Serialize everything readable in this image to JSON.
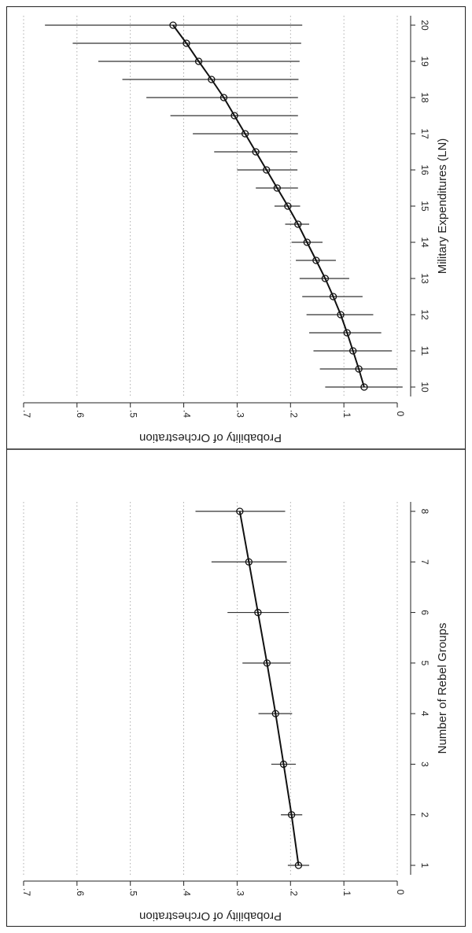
{
  "chart_data": [
    {
      "type": "line",
      "orientation": "rotated-90",
      "xlabel": "Number of Rebel Groups",
      "ylabel": "Probability of Orchestration",
      "x_ticks": [
        "1",
        "2",
        "3",
        "4",
        "5",
        "6",
        "7",
        "8"
      ],
      "y_ticks": [
        "0",
        ".1",
        ".2",
        ".3",
        ".4",
        ".5",
        ".6",
        ".7"
      ],
      "ylim": [
        0,
        0.7
      ],
      "xlim": [
        1,
        8
      ],
      "grid": "horizontal dotted",
      "series": [
        {
          "x": [
            1,
            2,
            3,
            4,
            5,
            6,
            7,
            8
          ],
          "y": [
            0.185,
            0.198,
            0.213,
            0.228,
            0.244,
            0.261,
            0.278,
            0.295
          ],
          "lower": [
            0.165,
            0.178,
            0.19,
            0.197,
            0.2,
            0.203,
            0.207,
            0.21
          ],
          "upper": [
            0.205,
            0.218,
            0.236,
            0.26,
            0.29,
            0.318,
            0.348,
            0.378
          ]
        }
      ]
    },
    {
      "type": "line",
      "orientation": "rotated-90",
      "xlabel": "Military Expenditures (LN)",
      "ylabel": "Probability of Orchestration",
      "x_ticks": [
        "10",
        "11",
        "12",
        "13",
        "14",
        "15",
        "16",
        "17",
        "18",
        "19",
        "20"
      ],
      "y_ticks": [
        "0",
        ".1",
        ".2",
        ".3",
        ".4",
        ".5",
        ".6",
        ".7"
      ],
      "ylim": [
        0,
        0.7
      ],
      "xlim": [
        10,
        20
      ],
      "grid": "horizontal dotted",
      "series": [
        {
          "x": [
            10,
            10.5,
            11,
            11.5,
            12,
            12.5,
            13,
            13.5,
            14,
            14.5,
            15,
            15.5,
            16,
            16.5,
            17,
            17.5,
            18,
            18.5,
            19,
            19.5,
            20
          ],
          "y": [
            0.062,
            0.072,
            0.083,
            0.094,
            0.106,
            0.12,
            0.135,
            0.152,
            0.169,
            0.186,
            0.205,
            0.225,
            0.245,
            0.265,
            0.285,
            0.305,
            0.325,
            0.348,
            0.372,
            0.395,
            0.42
          ],
          "lower": [
            -0.01,
            0.0,
            0.01,
            0.03,
            0.045,
            0.065,
            0.09,
            0.115,
            0.14,
            0.165,
            0.182,
            0.186,
            0.187,
            0.187,
            0.186,
            0.186,
            0.186,
            0.185,
            0.183,
            0.18,
            0.178
          ],
          "upper": [
            0.135,
            0.145,
            0.157,
            0.165,
            0.17,
            0.178,
            0.183,
            0.19,
            0.198,
            0.21,
            0.23,
            0.265,
            0.3,
            0.343,
            0.383,
            0.425,
            0.47,
            0.515,
            0.56,
            0.608,
            0.66
          ]
        }
      ]
    }
  ]
}
